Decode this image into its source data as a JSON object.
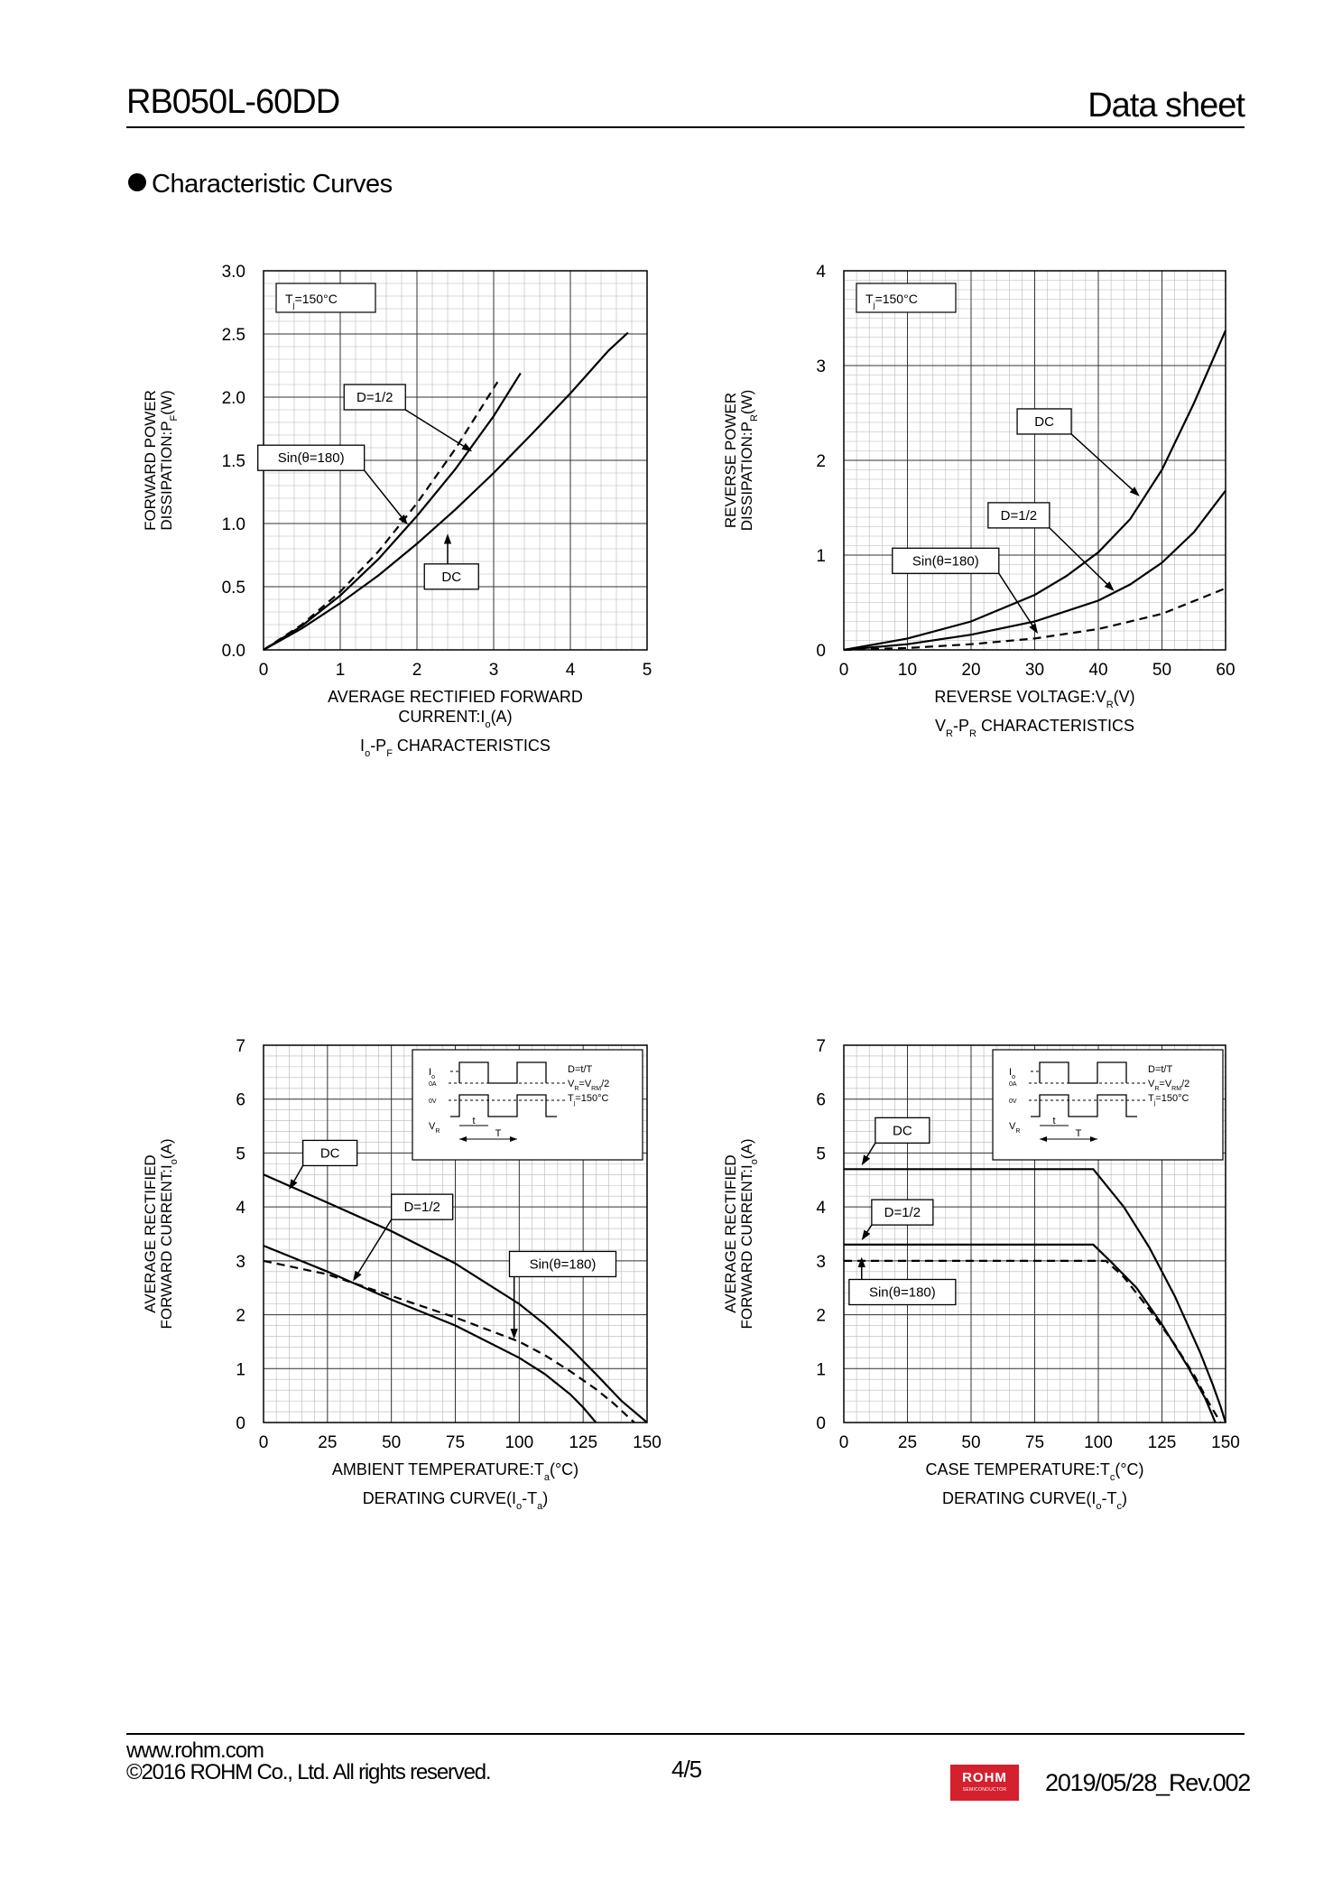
{
  "header": {
    "part_number": "RB050L-60DD",
    "doc_type": "Data sheet"
  },
  "section_title": "Characteristic Curves",
  "footer": {
    "url": "www.rohm.com",
    "copyright": "©2016 ROHM Co., Ltd. All rights reserved.",
    "page": "4/5",
    "logo_text": "ROHM",
    "logo_subtext": "SEMICONDUCTOR",
    "revision": "2019/05/28_Rev.002"
  },
  "chart_data": [
    {
      "id": "io-pf",
      "type": "line",
      "caption": [
        "I",
        "o",
        "-P",
        "F",
        " CHARACTERISTICS"
      ],
      "xlabel_lines": [
        [
          "AVERAGE RECTIFIED FORWARD"
        ],
        [
          "CURRENT:I",
          "o",
          "(A)"
        ]
      ],
      "ylabel_lines": [
        [
          "FORWARD POWER"
        ],
        [
          "DISSIPATION:P",
          "F",
          "(W)"
        ]
      ],
      "condition": [
        "T",
        "j",
        "=150°C"
      ],
      "xlim": [
        0,
        5
      ],
      "ylim": [
        0,
        3
      ],
      "xticks": [
        0,
        1,
        2,
        3,
        4,
        5
      ],
      "yticks": [
        0,
        0.5,
        1,
        1.5,
        2,
        2.5,
        3
      ],
      "ytick_labels": [
        "0.0",
        "0.5",
        "1.0",
        "1.5",
        "2.0",
        "2.5",
        "3.0"
      ],
      "series": [
        {
          "name": "DC",
          "dash": false,
          "x": [
            0,
            0.5,
            1,
            1.5,
            2,
            2.5,
            3,
            3.5,
            4,
            4.5,
            4.75
          ],
          "y": [
            0,
            0.17,
            0.37,
            0.59,
            0.84,
            1.11,
            1.4,
            1.71,
            2.03,
            2.37,
            2.51
          ]
        },
        {
          "name": "D=1/2",
          "dash": false,
          "x": [
            0,
            0.5,
            1,
            1.5,
            2,
            2.5,
            3,
            3.35
          ],
          "y": [
            0,
            0.19,
            0.43,
            0.72,
            1.06,
            1.43,
            1.85,
            2.19
          ]
        },
        {
          "name": "Sin(θ=180)",
          "dash": true,
          "x": [
            0,
            0.5,
            1,
            1.5,
            2,
            2.5,
            3.05
          ],
          "y": [
            0,
            0.2,
            0.46,
            0.78,
            1.16,
            1.59,
            2.12
          ]
        }
      ],
      "annotations": [
        {
          "text": "D=1/2",
          "box": [
            1.45,
            2.0
          ],
          "tip": [
            2.72,
            1.57
          ]
        },
        {
          "text": "Sin(θ=180)",
          "box": [
            0.62,
            1.52
          ],
          "tip": [
            1.88,
            0.99
          ]
        },
        {
          "text": "DC",
          "box": [
            2.45,
            0.58
          ],
          "tip": [
            2.4,
            0.92
          ]
        }
      ]
    },
    {
      "id": "vr-pr",
      "type": "line",
      "caption": [
        "V",
        "R",
        "-P",
        "R",
        " CHARACTERISTICS"
      ],
      "xlabel_lines": [
        [
          "REVERSE VOLTAGE:V",
          "R",
          "(V)"
        ]
      ],
      "ylabel_lines": [
        [
          "REVERSE POWER"
        ],
        [
          "DISSIPATION:P",
          "R",
          "(W)"
        ]
      ],
      "condition": [
        "T",
        "j",
        "=150°C"
      ],
      "xlim": [
        0,
        60
      ],
      "ylim": [
        0,
        4
      ],
      "xticks": [
        0,
        10,
        20,
        30,
        40,
        50,
        60
      ],
      "yticks": [
        0,
        1,
        2,
        3,
        4
      ],
      "ytick_labels": [
        "0",
        "1",
        "2",
        "3",
        "4"
      ],
      "series": [
        {
          "name": "DC",
          "dash": false,
          "x": [
            0,
            10,
            20,
            30,
            35,
            40,
            45,
            50,
            55,
            60
          ],
          "y": [
            0,
            0.12,
            0.3,
            0.58,
            0.78,
            1.03,
            1.38,
            1.9,
            2.6,
            3.37
          ]
        },
        {
          "name": "D=1/2",
          "dash": false,
          "x": [
            0,
            10,
            20,
            30,
            40,
            45,
            50,
            55,
            60
          ],
          "y": [
            0,
            0.06,
            0.16,
            0.3,
            0.52,
            0.69,
            0.92,
            1.24,
            1.68
          ]
        },
        {
          "name": "Sin(θ=180)",
          "dash": true,
          "x": [
            0,
            10,
            20,
            30,
            40,
            50,
            60
          ],
          "y": [
            0,
            0.02,
            0.06,
            0.12,
            0.22,
            0.38,
            0.65
          ]
        }
      ],
      "annotations": [
        {
          "text": "DC",
          "box": [
            31.5,
            2.41
          ],
          "tip": [
            46.5,
            1.62
          ]
        },
        {
          "text": "D=1/2",
          "box": [
            27.5,
            1.42
          ],
          "tip": [
            42.5,
            0.62
          ]
        },
        {
          "text": "Sin(θ=180)",
          "box": [
            16,
            0.94
          ],
          "tip": [
            30.5,
            0.17
          ]
        }
      ]
    },
    {
      "id": "derating-ta",
      "type": "line",
      "caption": [
        "DERATING CURVE(I",
        "o",
        "-T",
        "a",
        ")"
      ],
      "xlabel_lines": [
        [
          "AMBIENT TEMPERATURE:T",
          "a",
          "(°C)"
        ]
      ],
      "ylabel_lines": [
        [
          "AVERAGE RECTIFIED"
        ],
        [
          "FORWARD CURRENT:I",
          "o",
          "(A)"
        ]
      ],
      "xlim": [
        0,
        150
      ],
      "ylim": [
        0,
        7
      ],
      "xticks": [
        0,
        25,
        50,
        75,
        100,
        125,
        150
      ],
      "yticks": [
        0,
        1,
        2,
        3,
        4,
        5,
        6,
        7
      ],
      "ytick_labels": [
        "0",
        "1",
        "2",
        "3",
        "4",
        "5",
        "6",
        "7"
      ],
      "series": [
        {
          "name": "DC",
          "dash": false,
          "x": [
            0,
            25,
            50,
            75,
            100,
            110,
            120,
            130,
            140,
            150
          ],
          "y": [
            4.6,
            4.08,
            3.55,
            2.95,
            2.2,
            1.82,
            1.38,
            0.9,
            0.4,
            0
          ]
        },
        {
          "name": "D=1/2",
          "dash": false,
          "x": [
            0,
            25,
            50,
            75,
            100,
            110,
            120,
            125,
            130
          ],
          "y": [
            3.28,
            2.8,
            2.28,
            1.8,
            1.2,
            0.9,
            0.52,
            0.28,
            0
          ]
        },
        {
          "name": "Sin(θ=180)",
          "dash": true,
          "x": [
            0,
            25,
            50,
            75,
            100,
            110,
            120,
            130,
            137,
            145
          ],
          "y": [
            3.0,
            2.75,
            2.35,
            1.95,
            1.5,
            1.25,
            0.95,
            0.62,
            0.35,
            0
          ]
        }
      ],
      "annotations": [
        {
          "text": "DC",
          "box": [
            26,
            5.0
          ],
          "tip": [
            10,
            4.32
          ]
        },
        {
          "text": "D=1/2",
          "box": [
            62,
            4.0
          ],
          "tip": [
            35,
            2.62
          ]
        },
        {
          "text": "Sin(θ=180)",
          "box": [
            117,
            2.94
          ],
          "tip": [
            98,
            1.55
          ]
        }
      ],
      "inset": {
        "i_label": [
          "I",
          "o"
        ],
        "zero_a": "0A",
        "zero_v": "0V",
        "v_label": [
          "V",
          "R"
        ],
        "t": "t",
        "T": "T",
        "duty": "D=t/T",
        "vr_eq": [
          "V",
          "R",
          "=V",
          "RM",
          "/2"
        ],
        "tj": [
          "T",
          "j",
          "=150°C"
        ]
      }
    },
    {
      "id": "derating-tc",
      "type": "line",
      "caption": [
        "DERATING CURVE(I",
        "o",
        "-T",
        "c",
        ")"
      ],
      "xlabel_lines": [
        [
          "CASE TEMPERATURE:T",
          "c",
          "(°C)"
        ]
      ],
      "ylabel_lines": [
        [
          "AVERAGE RECTIFIED"
        ],
        [
          "FORWARD CURRENT:I",
          "o",
          "(A)"
        ]
      ],
      "xlim": [
        0,
        150
      ],
      "ylim": [
        0,
        7
      ],
      "xticks": [
        0,
        25,
        50,
        75,
        100,
        125,
        150
      ],
      "yticks": [
        0,
        1,
        2,
        3,
        4,
        5,
        6,
        7
      ],
      "ytick_labels": [
        "0",
        "1",
        "2",
        "3",
        "4",
        "5",
        "6",
        "7"
      ],
      "series": [
        {
          "name": "DC",
          "dash": false,
          "x": [
            0,
            98,
            110,
            120,
            130,
            140,
            145,
            148,
            150
          ],
          "y": [
            4.7,
            4.7,
            4.0,
            3.25,
            2.35,
            1.3,
            0.7,
            0.3,
            0
          ]
        },
        {
          "name": "D=1/2",
          "dash": false,
          "x": [
            0,
            98,
            105,
            115,
            125,
            135,
            142,
            146
          ],
          "y": [
            3.3,
            3.3,
            2.98,
            2.5,
            1.82,
            1.05,
            0.45,
            0
          ]
        },
        {
          "name": "Sin(θ=180)",
          "dash": true,
          "x": [
            0,
            103,
            110,
            120,
            130,
            138,
            143,
            148
          ],
          "y": [
            3.0,
            3.0,
            2.7,
            2.1,
            1.45,
            0.85,
            0.4,
            0
          ]
        }
      ],
      "annotations": [
        {
          "text": "DC",
          "box": [
            23,
            5.42
          ],
          "tip": [
            7,
            4.77
          ]
        },
        {
          "text": "D=1/2",
          "box": [
            23,
            3.9
          ],
          "tip": [
            7,
            3.38
          ]
        },
        {
          "text": "Sin(θ=180)",
          "box": [
            23,
            2.42
          ],
          "tip": [
            7,
            3.07
          ]
        }
      ],
      "inset": {
        "i_label": [
          "I",
          "o"
        ],
        "zero_a": "0A",
        "zero_v": "0V",
        "v_label": [
          "V",
          "R"
        ],
        "t": "t",
        "T": "T",
        "duty": "D=t/T",
        "vr_eq": [
          "V",
          "R",
          "=V",
          "RM",
          "/2"
        ],
        "tj": [
          "T",
          "j",
          "=150°C"
        ]
      }
    }
  ]
}
